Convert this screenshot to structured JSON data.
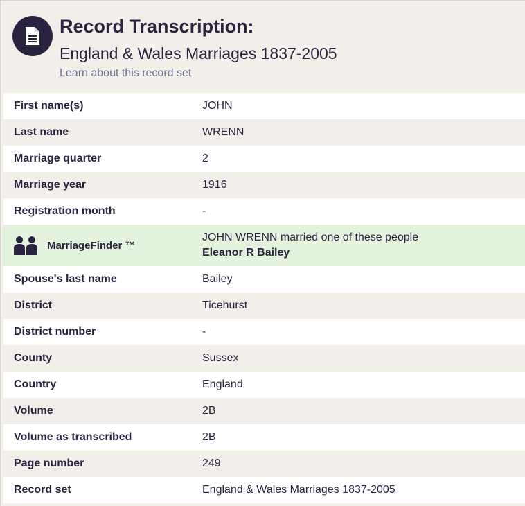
{
  "header": {
    "title": "Record Transcription:",
    "subtitle": "England & Wales Marriages 1837-2005",
    "learn_link": "Learn about this record set",
    "icon": "document-icon"
  },
  "rows_before": [
    {
      "label": "First name(s)",
      "value": "JOHN"
    },
    {
      "label": "Last name",
      "value": "WRENN"
    },
    {
      "label": "Marriage quarter",
      "value": "2"
    },
    {
      "label": "Marriage year",
      "value": "1916"
    },
    {
      "label": "Registration month",
      "value": "-"
    }
  ],
  "marriage_finder": {
    "label": "MarriageFinder ™",
    "icon": "people-icon",
    "text": "JOHN WRENN married one of these people",
    "spouse": "Eleanor R Bailey"
  },
  "rows_after": [
    {
      "label": "Spouse's last name",
      "value": "Bailey"
    },
    {
      "label": "District",
      "value": "Ticehurst"
    },
    {
      "label": "District number",
      "value": "-"
    },
    {
      "label": "County",
      "value": "Sussex"
    },
    {
      "label": "Country",
      "value": "England"
    },
    {
      "label": "Volume",
      "value": "2B"
    },
    {
      "label": "Volume as transcribed",
      "value": "2B"
    },
    {
      "label": "Page number",
      "value": "249"
    },
    {
      "label": "Record set",
      "value": "England & Wales Marriages 1837-2005"
    }
  ],
  "colors": {
    "primary": "#2a2340",
    "link": "#6a7391",
    "stripe": "#f2efea",
    "highlight": "#e3f3dd"
  }
}
